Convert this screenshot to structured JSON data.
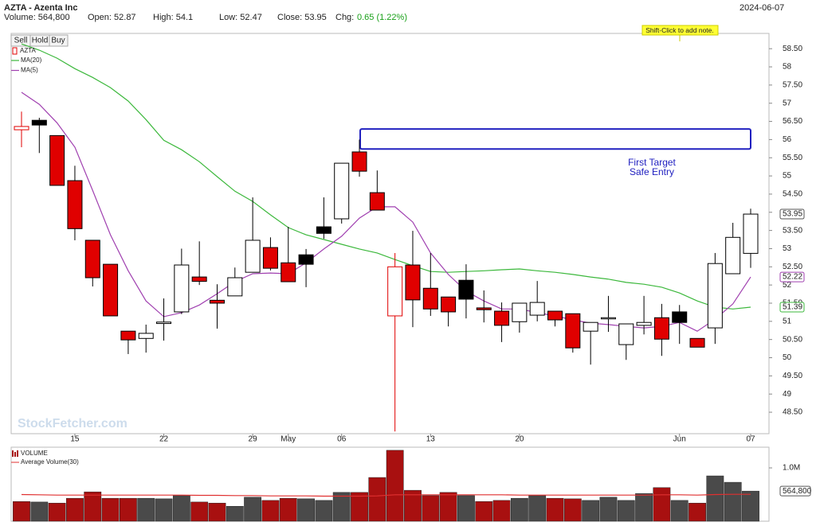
{
  "header": {
    "title": "AZTA - Azenta Inc",
    "volume": "Volume: 564,800",
    "open": "Open: 52.87",
    "high": "High: 54.1",
    "low": "Low: 52.47",
    "close": "Close: 53.95",
    "change_label": "Chg:",
    "change": "0.65 (1.22%)",
    "date": "2024-06-07"
  },
  "buttons": [
    "Sell",
    "Hold",
    "Buy"
  ],
  "note": "Shift-Click to add note.",
  "watermark": "StockFetcher.com",
  "chart_data": [
    {
      "type": "candlestick",
      "name": "AZTA",
      "categories": [
        null,
        null,
        null,
        "15",
        null,
        null,
        null,
        null,
        "22",
        null,
        null,
        null,
        null,
        "29",
        null,
        "May",
        null,
        null,
        "06",
        null,
        null,
        null,
        null,
        "13",
        null,
        null,
        null,
        null,
        "20",
        null,
        null,
        null,
        null,
        null,
        null,
        null,
        null,
        "Jun",
        null,
        null,
        null,
        "07"
      ],
      "open": [
        56.27,
        56.53,
        56.11,
        54.87,
        53.23,
        52.57,
        50.73,
        50.53,
        50.94,
        51.26,
        52.22,
        51.58,
        51.7,
        52.35,
        53.03,
        52.61,
        52.83,
        53.6,
        53.82,
        55.66,
        54.54,
        51.15,
        52.55,
        51.91,
        51.67,
        52.13,
        51.37,
        51.28,
        50.99,
        51.17,
        51.28,
        51.21,
        50.73,
        51.07,
        50.36,
        50.89,
        51.1,
        51.26,
        50.53,
        50.82,
        52.31,
        52.87
      ],
      "high": [
        56.77,
        56.6,
        56.11,
        55.28,
        53.23,
        52.57,
        50.73,
        50.91,
        51.63,
        53.0,
        53.2,
        52.02,
        52.48,
        54.41,
        53.31,
        53.6,
        52.99,
        54.41,
        55.35,
        56.0,
        55.15,
        52.88,
        53.49,
        52.88,
        51.67,
        52.57,
        51.85,
        51.52,
        51.5,
        52.11,
        51.28,
        51.21,
        50.97,
        51.7,
        50.93,
        51.7,
        51.48,
        51.45,
        50.53,
        52.88,
        53.71,
        54.1
      ],
      "low": [
        55.79,
        55.63,
        54.74,
        53.23,
        51.96,
        51.15,
        50.1,
        50.14,
        50.47,
        51.2,
        52.0,
        50.8,
        51.7,
        52.35,
        52.4,
        52.09,
        51.94,
        53.27,
        53.69,
        54.98,
        54.06,
        47.97,
        50.84,
        51.15,
        50.86,
        51.08,
        50.97,
        50.43,
        50.69,
        51.0,
        50.86,
        50.14,
        49.81,
        50.71,
        49.94,
        50.64,
        50.05,
        50.38,
        50.29,
        50.38,
        52.31,
        52.47
      ],
      "close": [
        56.36,
        56.4,
        54.74,
        53.55,
        52.2,
        51.15,
        50.49,
        50.67,
        50.98,
        52.55,
        52.1,
        51.5,
        52.2,
        53.23,
        52.46,
        52.09,
        52.57,
        53.42,
        55.35,
        55.13,
        54.06,
        52.5,
        51.59,
        51.34,
        51.26,
        51.61,
        51.32,
        50.89,
        51.5,
        51.52,
        51.04,
        50.27,
        50.97,
        51.1,
        50.93,
        50.97,
        50.51,
        50.97,
        50.29,
        52.59,
        53.31,
        53.95
      ],
      "colors": [
        "#ffffff",
        "#000000",
        "#e00000",
        "#e00000",
        "#e00000",
        "#e00000",
        "#e00000",
        "#ffffff",
        "#ffffff",
        "#ffffff",
        "#e00000",
        "#e00000",
        "#ffffff",
        "#ffffff",
        "#e00000",
        "#e00000",
        "#000000",
        "#000000",
        "#ffffff",
        "#e00000",
        "#e00000",
        "#ffffff",
        "#e00000",
        "#e00000",
        "#e00000",
        "#000000",
        "#e00000",
        "#e00000",
        "#ffffff",
        "#ffffff",
        "#e00000",
        "#e00000",
        "#ffffff",
        "#ffffff",
        "#ffffff",
        "#ffffff",
        "#e00000",
        "#000000",
        "#e00000",
        "#ffffff",
        "#ffffff",
        "#ffffff"
      ],
      "edge_colors": [
        "#e00000",
        "#000000",
        "#000000",
        "#000000",
        "#000000",
        "#000000",
        "#000000",
        "#000000",
        "#000000",
        "#000000",
        "#000000",
        "#000000",
        "#000000",
        "#000000",
        "#000000",
        "#000000",
        "#000000",
        "#000000",
        "#000000",
        "#000000",
        "#000000",
        "#e00000",
        "#000000",
        "#000000",
        "#000000",
        "#000000",
        "#000000",
        "#000000",
        "#000000",
        "#000000",
        "#000000",
        "#000000",
        "#000000",
        "#000000",
        "#000000",
        "#000000",
        "#000000",
        "#000000",
        "#000000",
        "#000000",
        "#000000",
        "#000000"
      ],
      "series": [
        {
          "name": "MA(20)",
          "color": "#3cb83c",
          "values": [
            58.63,
            58.46,
            58.24,
            57.95,
            57.71,
            57.43,
            57.06,
            56.55,
            55.98,
            55.72,
            55.39,
            54.98,
            54.58,
            54.3,
            53.93,
            53.58,
            53.38,
            53.25,
            53.12,
            52.99,
            52.88,
            52.7,
            52.53,
            52.37,
            52.35,
            52.37,
            52.39,
            52.42,
            52.44,
            52.39,
            52.35,
            52.29,
            52.22,
            52.16,
            52.07,
            52.02,
            51.94,
            51.78,
            51.56,
            51.39,
            51.34,
            51.39
          ]
        },
        {
          "name": "MA(5)",
          "color": "#a040b0",
          "values": [
            57.3,
            56.97,
            56.46,
            55.79,
            54.6,
            53.38,
            52.39,
            51.56,
            51.13,
            51.24,
            51.45,
            51.76,
            52.09,
            52.31,
            52.33,
            52.31,
            52.61,
            52.99,
            53.34,
            53.84,
            54.15,
            54.15,
            53.73,
            52.88,
            52.29,
            51.83,
            51.56,
            51.34,
            51.34,
            51.24,
            51.15,
            51.04,
            50.95,
            50.91,
            50.86,
            50.82,
            50.86,
            50.97,
            50.73,
            51.06,
            51.48,
            52.22
          ]
        }
      ],
      "ylim": [
        47.91,
        58.92
      ],
      "yticks": [
        {
          "value": 48.5,
          "label": "48.50"
        },
        49,
        {
          "value": 49.5,
          "label": "49.50"
        },
        50,
        {
          "value": 50.5,
          "label": "50.50"
        },
        51,
        {
          "value": 51.5,
          "label": "51.50"
        },
        52,
        {
          "value": 52.5,
          "label": "52.50"
        },
        53,
        {
          "value": 53.5,
          "label": "53.50"
        },
        54,
        {
          "value": 54.5,
          "label": "54.50"
        },
        55,
        {
          "value": 55.5,
          "label": "55.50"
        },
        56,
        {
          "value": 56.5,
          "label": "56.50"
        },
        57,
        {
          "value": 57.5,
          "label": "57.50"
        },
        58,
        {
          "value": 58.5,
          "label": "58.50"
        }
      ],
      "target_zone": {
        "low": 55.74,
        "high": 56.29,
        "box_color": "#2020c0",
        "text": [
          "First Target",
          "Safe Entry"
        ]
      }
    },
    {
      "type": "bar",
      "name": "VOLUME",
      "values": [
        370000,
        360000,
        340000,
        430000,
        550000,
        430000,
        430000,
        430000,
        420000,
        480000,
        360000,
        340000,
        280000,
        450000,
        390000,
        430000,
        420000,
        390000,
        540000,
        540000,
        820000,
        1330000,
        580000,
        480000,
        540000,
        480000,
        370000,
        390000,
        430000,
        480000,
        430000,
        420000,
        390000,
        450000,
        390000,
        520000,
        630000,
        390000,
        340000,
        850000,
        730000,
        564800
      ],
      "colors": [
        "#a81010",
        "#4a4a4a",
        "#a81010",
        "#a81010",
        "#a81010",
        "#a81010",
        "#a81010",
        "#4a4a4a",
        "#4a4a4a",
        "#4a4a4a",
        "#a81010",
        "#a81010",
        "#4a4a4a",
        "#4a4a4a",
        "#a81010",
        "#a81010",
        "#4a4a4a",
        "#4a4a4a",
        "#4a4a4a",
        "#a81010",
        "#a81010",
        "#a81010",
        "#a81010",
        "#a81010",
        "#a81010",
        "#4a4a4a",
        "#a81010",
        "#a81010",
        "#4a4a4a",
        "#4a4a4a",
        "#a81010",
        "#a81010",
        "#4a4a4a",
        "#4a4a4a",
        "#4a4a4a",
        "#4a4a4a",
        "#a81010",
        "#4a4a4a",
        "#a81010",
        "#4a4a4a",
        "#4a4a4a",
        "#4a4a4a"
      ],
      "last_value_label": "564,800",
      "series": [
        {
          "name": "Average Volume(30)",
          "color": "#e03030",
          "values": [
            500000,
            495000,
            490000,
            490000,
            490000,
            490000,
            490000,
            490000,
            490000,
            490000,
            485000,
            485000,
            480000,
            480000,
            475000,
            475000,
            475000,
            470000,
            470000,
            470000,
            475000,
            495000,
            495000,
            495000,
            495000,
            495000,
            495000,
            495000,
            490000,
            490000,
            490000,
            490000,
            490000,
            490000,
            490000,
            490000,
            495000,
            495000,
            490000,
            500000,
            505000,
            505000
          ]
        }
      ],
      "ylim": [
        0,
        1388000
      ],
      "yticks": [
        {
          "value": 1000000,
          "label": "1.0M"
        }
      ]
    }
  ]
}
